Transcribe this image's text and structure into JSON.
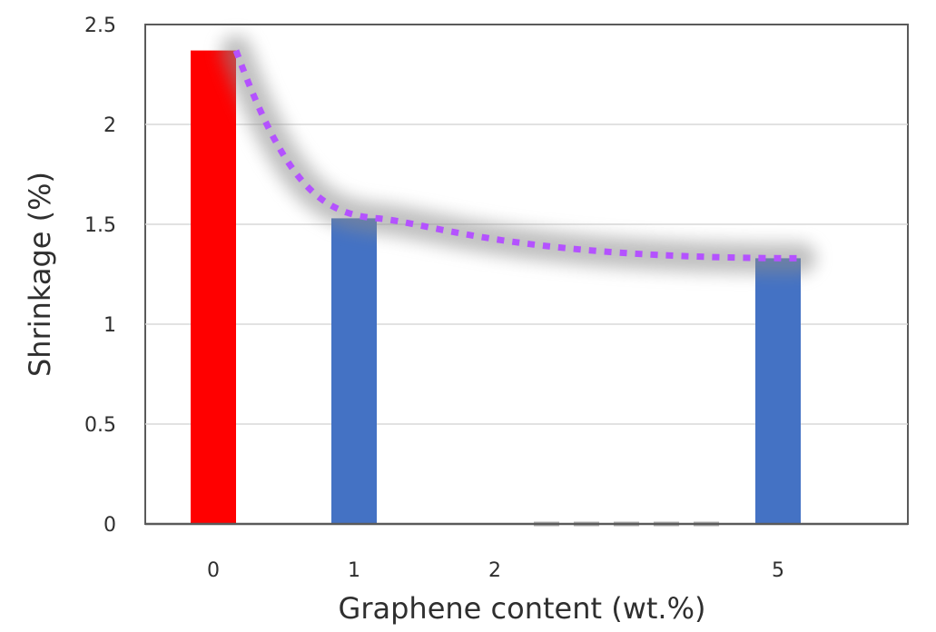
{
  "chart_data": {
    "type": "bar",
    "categories": [
      "0",
      "1",
      "2",
      "5"
    ],
    "values": [
      2.37,
      1.53,
      0,
      1.33
    ],
    "bar_colors": [
      "#ff0000",
      "#4472c4",
      "#4472c4",
      "#4472c4"
    ],
    "xlabel": "Graphene content (wt.%)",
    "ylabel": "Shrinkage (%)",
    "ylim": [
      0,
      2.5
    ],
    "yticks": [
      "0",
      "0.5",
      "1",
      "1.5",
      "2",
      "2.5"
    ],
    "grid": true,
    "trend_line": {
      "style": "dotted",
      "color": "#b452ff",
      "glow_color": "#8c8c8c",
      "points": [
        {
          "x": "0",
          "y": 2.37
        },
        {
          "x": "1",
          "y": 1.53
        },
        {
          "x": "5",
          "y": 1.33
        }
      ]
    },
    "missing_marker": {
      "style": "dashed",
      "color": "#b0b0b0"
    }
  }
}
